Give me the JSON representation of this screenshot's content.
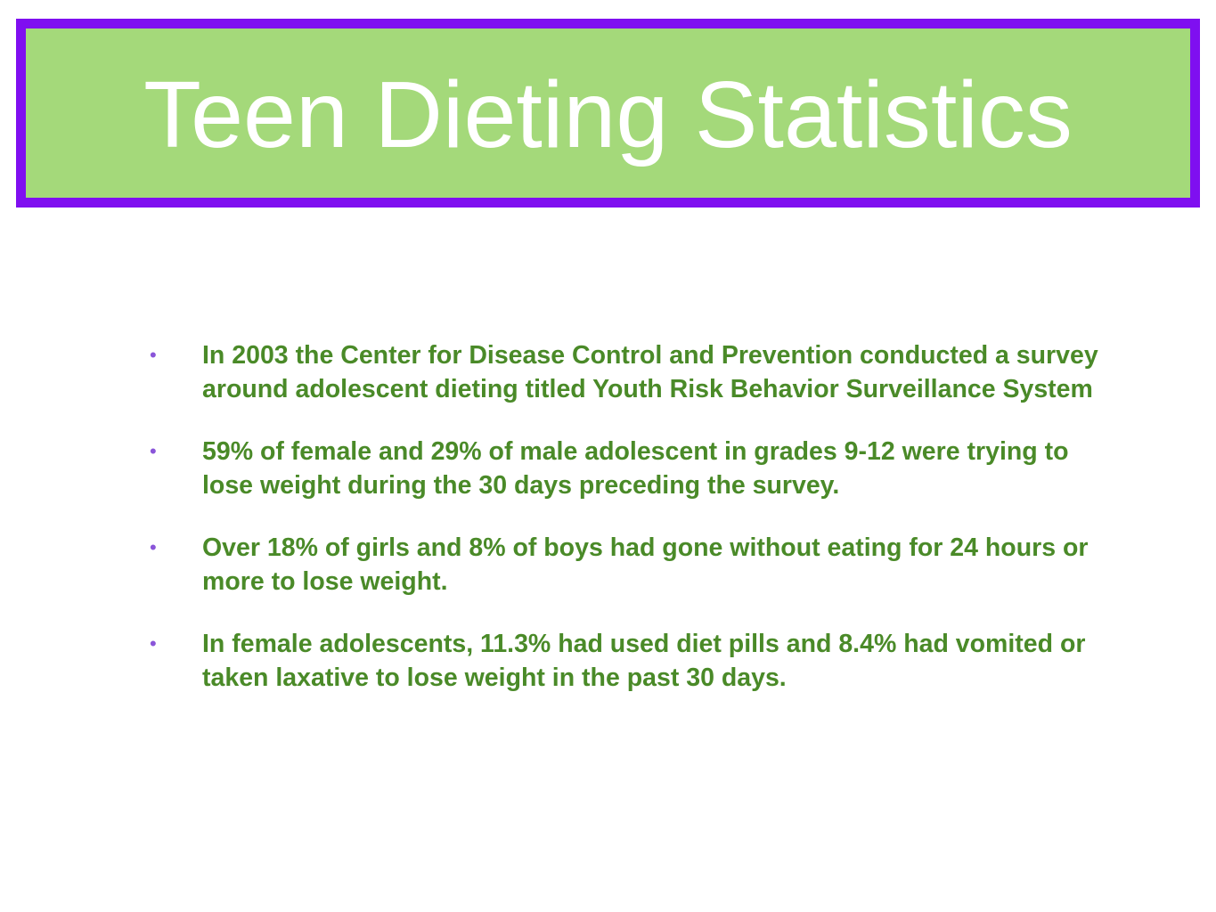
{
  "slide": {
    "title": "Teen Dieting Statistics",
    "bullet_symbol": "•",
    "bullets": [
      "In 2003 the Center for Disease Control and Prevention conducted a survey around adolescent dieting titled Youth Risk Behavior Surveillance System",
      "59% of female and 29% of male adolescent in grades 9-12 were trying to lose weight during the 30 days preceding the survey.",
      "Over 18% of girls and 8% of boys had gone without eating for 24 hours or more to lose weight.",
      "In female adolescents, 11.3% had used diet pills and 8.4% had vomited or taken laxative to lose weight in the past 30 days."
    ]
  },
  "colors": {
    "title_border": "#7f0ff0",
    "title_background": "#a4d97a",
    "title_text": "#ffffff",
    "body_text": "#4a8a28",
    "bullet": "#8a55d9"
  }
}
